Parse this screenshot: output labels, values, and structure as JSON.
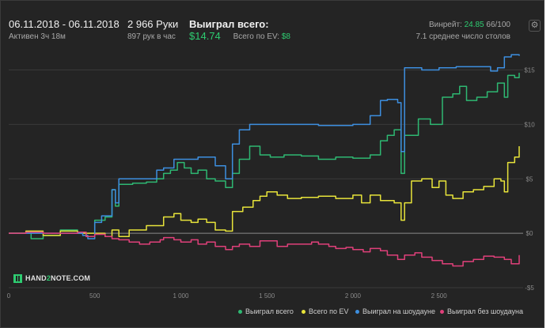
{
  "header": {
    "date_range": "06.11.2018 - 06.11.2018",
    "active": "Активен 3ч 18м",
    "hands": "2 966 Руки",
    "hands_per_hour": "897 рук в час",
    "won_total_label": "Выиграл всего:",
    "won_total_value": "$14.74",
    "ev_label": "Всего по EV:",
    "ev_value": "$8",
    "winrate_label": "Винрейт:",
    "winrate_value": "24.85",
    "winrate_hands": "66/100",
    "avg_tables": "7.1 среднее число столов",
    "settings_icon": "gear-icon"
  },
  "logo": {
    "text_left": "HAND",
    "text_mid": "2",
    "text_right": "NOTE.COM"
  },
  "colors": {
    "won_total": "#2eb872",
    "ev": "#e8e43a",
    "showdown": "#3d8fe0",
    "no_showdown": "#e0407a",
    "background": "#242424",
    "grid": "#3a3a3a"
  },
  "chart_data": {
    "type": "line",
    "xlim": [
      0,
      2966
    ],
    "ylim": [
      -5,
      17
    ],
    "x_ticks": [
      0,
      500,
      1000,
      1500,
      2000,
      2500
    ],
    "x_tick_labels": [
      "0",
      "500",
      "1 000",
      "1 500",
      "2 000",
      "2 500"
    ],
    "y_ticks": [
      15,
      10,
      5,
      0,
      -5
    ],
    "y_tick_labels": [
      "$15",
      "$10",
      "$5",
      "$0",
      "-$5"
    ],
    "legend_position": "bottom-right",
    "series": [
      {
        "name": "Выиграл всего",
        "color": "#2eb872",
        "points": [
          [
            0,
            0
          ],
          [
            100,
            0.1
          ],
          [
            130,
            -0.5
          ],
          [
            200,
            -0.2
          ],
          [
            300,
            0.3
          ],
          [
            400,
            0.1
          ],
          [
            450,
            -0.3
          ],
          [
            500,
            1.2
          ],
          [
            560,
            1.5
          ],
          [
            600,
            4.0
          ],
          [
            620,
            2.5
          ],
          [
            640,
            4.5
          ],
          [
            720,
            4.6
          ],
          [
            800,
            4.7
          ],
          [
            860,
            5.0
          ],
          [
            900,
            5.5
          ],
          [
            940,
            5.8
          ],
          [
            980,
            6.5
          ],
          [
            1020,
            6.0
          ],
          [
            1060,
            5.5
          ],
          [
            1100,
            5.8
          ],
          [
            1150,
            5.0
          ],
          [
            1200,
            4.8
          ],
          [
            1260,
            4.2
          ],
          [
            1300,
            5.5
          ],
          [
            1340,
            6.8
          ],
          [
            1400,
            8.0
          ],
          [
            1460,
            7.2
          ],
          [
            1520,
            7.0
          ],
          [
            1600,
            7.2
          ],
          [
            1700,
            7.1
          ],
          [
            1800,
            6.8
          ],
          [
            1900,
            7.0
          ],
          [
            2000,
            6.9
          ],
          [
            2100,
            7.2
          ],
          [
            2160,
            8.5
          ],
          [
            2200,
            9.0
          ],
          [
            2240,
            9.5
          ],
          [
            2280,
            5.5
          ],
          [
            2300,
            9.0
          ],
          [
            2380,
            10.5
          ],
          [
            2450,
            10.0
          ],
          [
            2520,
            12.5
          ],
          [
            2580,
            12.8
          ],
          [
            2620,
            13.5
          ],
          [
            2660,
            12.2
          ],
          [
            2720,
            12.5
          ],
          [
            2780,
            13.0
          ],
          [
            2840,
            13.8
          ],
          [
            2880,
            12.5
          ],
          [
            2900,
            14.5
          ],
          [
            2940,
            14.3
          ],
          [
            2966,
            14.74
          ]
        ]
      },
      {
        "name": "Всего по EV",
        "color": "#e8e43a",
        "points": [
          [
            0,
            0
          ],
          [
            100,
            0.2
          ],
          [
            200,
            -0.2
          ],
          [
            300,
            0.2
          ],
          [
            400,
            0.0
          ],
          [
            500,
            0.0
          ],
          [
            560,
            -0.3
          ],
          [
            600,
            0.3
          ],
          [
            640,
            -0.3
          ],
          [
            700,
            0.3
          ],
          [
            800,
            0.7
          ],
          [
            900,
            1.5
          ],
          [
            960,
            1.8
          ],
          [
            1000,
            1.2
          ],
          [
            1060,
            1.0
          ],
          [
            1100,
            1.3
          ],
          [
            1150,
            1.0
          ],
          [
            1200,
            0.3
          ],
          [
            1260,
            0.2
          ],
          [
            1300,
            2.0
          ],
          [
            1360,
            2.4
          ],
          [
            1420,
            3.0
          ],
          [
            1460,
            3.4
          ],
          [
            1500,
            3.8
          ],
          [
            1560,
            3.5
          ],
          [
            1620,
            3.2
          ],
          [
            1700,
            3.3
          ],
          [
            1800,
            3.4
          ],
          [
            1900,
            3.2
          ],
          [
            2000,
            3.5
          ],
          [
            2050,
            2.8
          ],
          [
            2100,
            3.5
          ],
          [
            2160,
            3.0
          ],
          [
            2240,
            2.8
          ],
          [
            2280,
            1.2
          ],
          [
            2300,
            2.8
          ],
          [
            2340,
            4.8
          ],
          [
            2400,
            5.0
          ],
          [
            2460,
            4.2
          ],
          [
            2500,
            4.8
          ],
          [
            2540,
            3.5
          ],
          [
            2580,
            3.2
          ],
          [
            2640,
            3.8
          ],
          [
            2700,
            4.0
          ],
          [
            2760,
            4.3
          ],
          [
            2820,
            5.0
          ],
          [
            2860,
            4.8
          ],
          [
            2880,
            3.8
          ],
          [
            2900,
            6.5
          ],
          [
            2940,
            7.0
          ],
          [
            2966,
            8.0
          ]
        ]
      },
      {
        "name": "Выиграл на шоудауне",
        "color": "#3d8fe0",
        "points": [
          [
            0,
            0
          ],
          [
            100,
            0.0
          ],
          [
            200,
            0.0
          ],
          [
            300,
            0.0
          ],
          [
            400,
            0.0
          ],
          [
            430,
            -0.2
          ],
          [
            460,
            -0.5
          ],
          [
            500,
            1.0
          ],
          [
            540,
            1.6
          ],
          [
            600,
            4.0
          ],
          [
            620,
            2.8
          ],
          [
            640,
            5.0
          ],
          [
            700,
            5.0
          ],
          [
            800,
            5.0
          ],
          [
            860,
            5.8
          ],
          [
            900,
            6.0
          ],
          [
            960,
            6.8
          ],
          [
            1000,
            6.8
          ],
          [
            1100,
            7.0
          ],
          [
            1200,
            6.2
          ],
          [
            1260,
            5.0
          ],
          [
            1300,
            8.2
          ],
          [
            1340,
            9.5
          ],
          [
            1400,
            10.0
          ],
          [
            1500,
            10.0
          ],
          [
            1600,
            10.0
          ],
          [
            1700,
            10.0
          ],
          [
            1800,
            9.9
          ],
          [
            1900,
            9.9
          ],
          [
            2000,
            10.0
          ],
          [
            2100,
            10.8
          ],
          [
            2160,
            12.2
          ],
          [
            2200,
            12.3
          ],
          [
            2260,
            12.0
          ],
          [
            2280,
            7.5
          ],
          [
            2300,
            15.2
          ],
          [
            2400,
            15.0
          ],
          [
            2500,
            15.2
          ],
          [
            2600,
            15.3
          ],
          [
            2700,
            15.3
          ],
          [
            2760,
            15.3
          ],
          [
            2800,
            14.9
          ],
          [
            2840,
            15.2
          ],
          [
            2880,
            16.2
          ],
          [
            2920,
            16.4
          ],
          [
            2966,
            16.3
          ]
        ]
      },
      {
        "name": "Выиграл без шоудауна",
        "color": "#e0407a",
        "points": [
          [
            0,
            0
          ],
          [
            100,
            0.1
          ],
          [
            200,
            0.0
          ],
          [
            300,
            0.0
          ],
          [
            400,
            0.1
          ],
          [
            450,
            -0.3
          ],
          [
            500,
            -0.1
          ],
          [
            560,
            -0.3
          ],
          [
            600,
            -0.5
          ],
          [
            640,
            -0.6
          ],
          [
            700,
            -0.8
          ],
          [
            760,
            -1.0
          ],
          [
            820,
            -0.8
          ],
          [
            880,
            -0.6
          ],
          [
            900,
            -0.4
          ],
          [
            960,
            -0.6
          ],
          [
            1000,
            -0.8
          ],
          [
            1060,
            -0.6
          ],
          [
            1100,
            -1.0
          ],
          [
            1150,
            -0.8
          ],
          [
            1200,
            -1.2
          ],
          [
            1260,
            -1.5
          ],
          [
            1300,
            -1.2
          ],
          [
            1340,
            -1.0
          ],
          [
            1400,
            -1.2
          ],
          [
            1460,
            -0.7
          ],
          [
            1500,
            -0.7
          ],
          [
            1560,
            -1.2
          ],
          [
            1620,
            -1.0
          ],
          [
            1700,
            -1.0
          ],
          [
            1760,
            -0.8
          ],
          [
            1800,
            -1.0
          ],
          [
            1860,
            -1.2
          ],
          [
            1900,
            -1.4
          ],
          [
            1960,
            -1.3
          ],
          [
            2000,
            -1.5
          ],
          [
            2060,
            -1.7
          ],
          [
            2100,
            -1.4
          ],
          [
            2160,
            -1.6
          ],
          [
            2200,
            -2.0
          ],
          [
            2260,
            -2.4
          ],
          [
            2300,
            -2.0
          ],
          [
            2360,
            -1.8
          ],
          [
            2400,
            -2.2
          ],
          [
            2460,
            -2.5
          ],
          [
            2520,
            -2.8
          ],
          [
            2580,
            -3.0
          ],
          [
            2640,
            -2.6
          ],
          [
            2700,
            -2.4
          ],
          [
            2760,
            -2.1
          ],
          [
            2820,
            -2.2
          ],
          [
            2880,
            -2.4
          ],
          [
            2920,
            -2.8
          ],
          [
            2966,
            -2.0
          ]
        ]
      }
    ]
  },
  "legend": [
    {
      "label": "Выиграл всего",
      "color": "#2eb872"
    },
    {
      "label": "Всего по EV",
      "color": "#e8e43a"
    },
    {
      "label": "Выиграл на шоудауне",
      "color": "#3d8fe0"
    },
    {
      "label": "Выиграл без шоудауна",
      "color": "#e0407a"
    }
  ]
}
